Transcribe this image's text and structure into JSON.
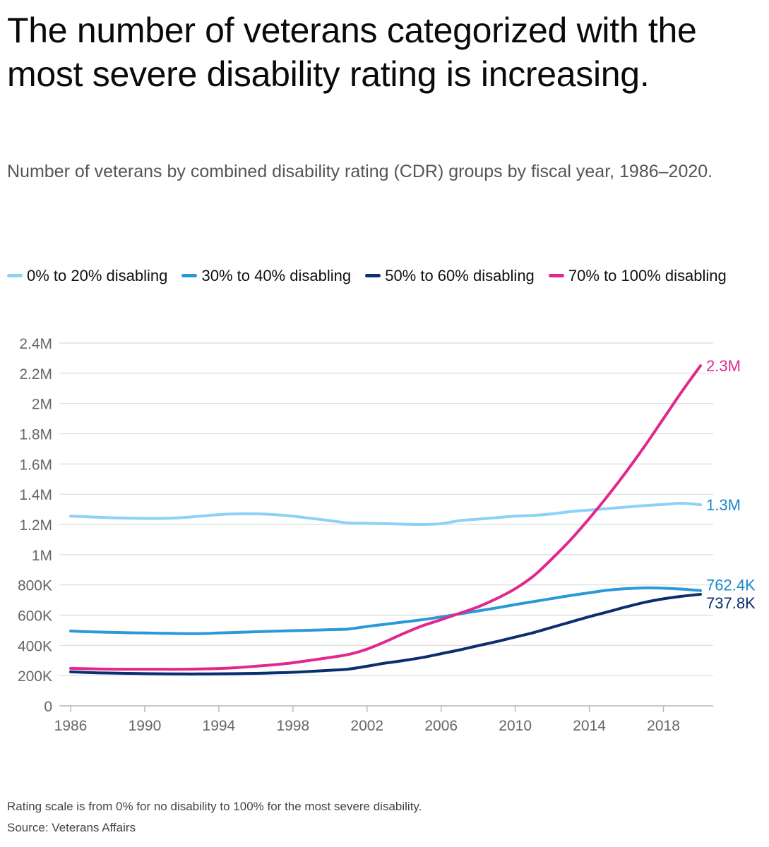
{
  "title": "The number of veterans categorized with the most severe disability rating is increasing.",
  "subtitle": "Number of veterans by combined disability rating (CDR) groups by fiscal year, 1986–2020.",
  "footnote": {
    "note": "Rating scale is from 0% for no disability to 100% for the most severe disability.",
    "source": "Source: Veterans Affairs"
  },
  "chart_data": {
    "type": "line",
    "title": "The number of veterans categorized with the most severe disability rating is increasing.",
    "subtitle": "Number of veterans by combined disability rating (CDR) groups by fiscal year, 1986–2020.",
    "xlabel": "",
    "ylabel": "",
    "grid": true,
    "legend": "top",
    "xlim": [
      1986,
      2020
    ],
    "ylim": [
      0,
      2400000
    ],
    "x_ticks": [
      {
        "value": 1986,
        "label": "1986"
      },
      {
        "value": 1990,
        "label": "1990"
      },
      {
        "value": 1994,
        "label": "1994"
      },
      {
        "value": 1998,
        "label": "1998"
      },
      {
        "value": 2002,
        "label": "2002"
      },
      {
        "value": 2006,
        "label": "2006"
      },
      {
        "value": 2010,
        "label": "2010"
      },
      {
        "value": 2014,
        "label": "2014"
      },
      {
        "value": 2018,
        "label": "2018"
      }
    ],
    "y_ticks": [
      {
        "value": 0,
        "label": "0"
      },
      {
        "value": 200000,
        "label": "200K"
      },
      {
        "value": 400000,
        "label": "400K"
      },
      {
        "value": 600000,
        "label": "600K"
      },
      {
        "value": 800000,
        "label": "800K"
      },
      {
        "value": 1000000,
        "label": "1M"
      },
      {
        "value": 1200000,
        "label": "1.2M"
      },
      {
        "value": 1400000,
        "label": "1.4M"
      },
      {
        "value": 1600000,
        "label": "1.6M"
      },
      {
        "value": 1800000,
        "label": "1.8M"
      },
      {
        "value": 2000000,
        "label": "2M"
      },
      {
        "value": 2200000,
        "label": "2.2M"
      },
      {
        "value": 2400000,
        "label": "2.4M"
      }
    ],
    "x": [
      1986,
      1987,
      1988,
      1989,
      1990,
      1991,
      1992,
      1993,
      1994,
      1995,
      1996,
      1997,
      1998,
      1999,
      2000,
      2001,
      2002,
      2003,
      2004,
      2005,
      2006,
      2007,
      2008,
      2009,
      2010,
      2011,
      2012,
      2013,
      2014,
      2015,
      2016,
      2017,
      2018,
      2019,
      2020
    ],
    "series": [
      {
        "name": "0% to 20% disabling",
        "color": "#8ed1f8",
        "end_label": "1.3M",
        "end_label_color": "#1a8ac9",
        "values": [
          1255000,
          1250000,
          1245000,
          1242000,
          1240000,
          1240000,
          1245000,
          1255000,
          1265000,
          1270000,
          1270000,
          1265000,
          1255000,
          1240000,
          1225000,
          1210000,
          1208000,
          1205000,
          1202000,
          1200000,
          1205000,
          1225000,
          1235000,
          1245000,
          1255000,
          1260000,
          1270000,
          1285000,
          1295000,
          1305000,
          1315000,
          1325000,
          1332000,
          1340000,
          1330000
        ]
      },
      {
        "name": "30% to 40% disabling",
        "color": "#2a99d8",
        "end_label": "762.4K",
        "end_label_color": "#1a8ac9",
        "values": [
          495000,
          490000,
          487000,
          484000,
          482000,
          480000,
          478000,
          478000,
          482000,
          486000,
          490000,
          494000,
          497000,
          500000,
          504000,
          508000,
          525000,
          540000,
          555000,
          570000,
          588000,
          608000,
          628000,
          648000,
          670000,
          690000,
          710000,
          730000,
          748000,
          765000,
          775000,
          780000,
          778000,
          772000,
          762400
        ]
      },
      {
        "name": "50% to 60% disabling",
        "color": "#0a2e6e",
        "end_label": "737.8K",
        "end_label_color": "#0a2e6e",
        "values": [
          225000,
          220000,
          217000,
          215000,
          213000,
          212000,
          211000,
          211000,
          212000,
          213000,
          215000,
          218000,
          222000,
          228000,
          235000,
          243000,
          262000,
          283000,
          300000,
          320000,
          345000,
          370000,
          398000,
          425000,
          455000,
          485000,
          520000,
          555000,
          590000,
          622000,
          655000,
          685000,
          708000,
          725000,
          737800
        ]
      },
      {
        "name": "70% to 100% disabling",
        "color": "#e0288e",
        "end_label": "2.3M",
        "end_label_color": "#e0288e",
        "values": [
          248000,
          245000,
          243000,
          242000,
          242000,
          242000,
          242000,
          244000,
          247000,
          253000,
          262000,
          272000,
          285000,
          302000,
          320000,
          340000,
          375000,
          425000,
          480000,
          530000,
          570000,
          612000,
          655000,
          710000,
          775000,
          860000,
          975000,
          1100000,
          1240000,
          1390000,
          1550000,
          1720000,
          1900000,
          2080000,
          2250000
        ]
      }
    ]
  }
}
